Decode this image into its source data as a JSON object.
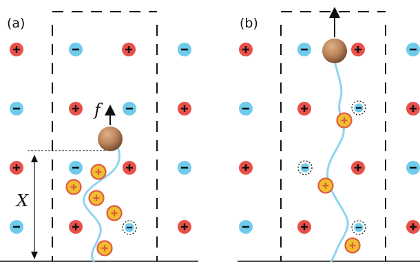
{
  "panels": [
    {
      "label": "(a)",
      "force_label": "f",
      "displacement_label": "X"
    },
    {
      "label": "(b)"
    }
  ],
  "colors": {
    "plus_ion": "#e8504a",
    "minus_ion": "#6ecbec",
    "bound_charge_fill": "#f0be2e",
    "bound_charge_ring": "#e05a40",
    "vacancy_outline": "#222222",
    "polymer": "#8fd4ef",
    "bead": "#b9825a",
    "dash": "#111111"
  }
}
